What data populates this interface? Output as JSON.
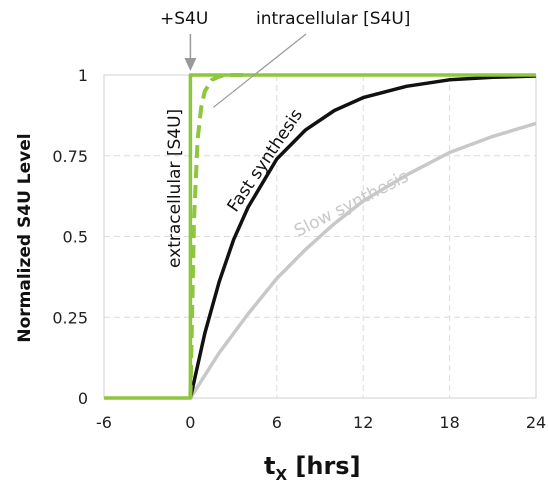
{
  "chart_data": {
    "type": "line",
    "xlabel_main": "t",
    "xlabel_sub": "X",
    "xlabel_rest": " [hrs]",
    "ylabel": "Normalized S4U Level",
    "xlim": [
      -6,
      24
    ],
    "ylim": [
      0,
      1
    ],
    "x_ticks": [
      "-6",
      "0",
      "6",
      "12",
      "18",
      "24"
    ],
    "y_ticks": [
      "0",
      "0.25",
      "0.5",
      "0.75",
      "1"
    ],
    "grid": true,
    "annotations": {
      "pulse": "+S4U",
      "intracellular": "intracellular [S4U]",
      "extracellular": "extracellular [S4U]",
      "fast": "Fast synthesis",
      "slow": "Slow synthesis"
    },
    "series": [
      {
        "name": "extracellular [S4U]",
        "color": "#8dc63f",
        "style": "solid",
        "x": [
          -6,
          0,
          0,
          24
        ],
        "y": [
          0,
          0,
          1,
          1
        ]
      },
      {
        "name": "intracellular [S4U]",
        "color": "#8dc63f",
        "style": "dashed",
        "x": [
          0,
          0.25,
          0.5,
          0.75,
          1,
          1.5,
          2,
          2.5,
          3,
          4
        ],
        "y": [
          0,
          0.55,
          0.8,
          0.9,
          0.95,
          0.985,
          0.995,
          1,
          1,
          1
        ]
      },
      {
        "name": "Fast synthesis",
        "color": "#111111",
        "style": "solid",
        "x": [
          0,
          1,
          2,
          3,
          4,
          6,
          8,
          10,
          12,
          15,
          18,
          21,
          24
        ],
        "y": [
          0,
          0.2,
          0.36,
          0.49,
          0.59,
          0.74,
          0.83,
          0.89,
          0.93,
          0.965,
          0.985,
          0.993,
          0.997
        ]
      },
      {
        "name": "Slow synthesis",
        "color": "#c8c8c8",
        "style": "solid",
        "x": [
          0,
          2,
          4,
          6,
          8,
          10,
          12,
          15,
          18,
          21,
          24
        ],
        "y": [
          0,
          0.14,
          0.26,
          0.37,
          0.46,
          0.54,
          0.61,
          0.69,
          0.76,
          0.81,
          0.85
        ]
      }
    ]
  }
}
